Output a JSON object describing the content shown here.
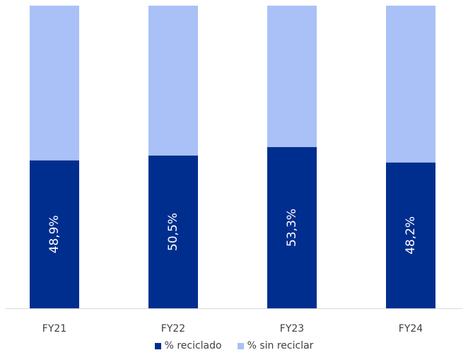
{
  "chart_data": {
    "type": "bar",
    "stacked": true,
    "percent_stacked": true,
    "categories": [
      "FY21",
      "FY22",
      "FY23",
      "FY24"
    ],
    "series": [
      {
        "name": "% reciclado",
        "values": [
          48.9,
          50.5,
          53.3,
          48.2
        ],
        "color": "#002e8f"
      },
      {
        "name": "% sin reciclar",
        "values": [
          51.1,
          49.5,
          46.7,
          51.8
        ],
        "color": "#a9c1f7"
      }
    ],
    "data_labels": [
      "48,9%",
      "50,5%",
      "53,3%",
      "48,2%"
    ],
    "ylim": [
      0,
      100
    ],
    "grid": false,
    "legend_position": "bottom"
  }
}
